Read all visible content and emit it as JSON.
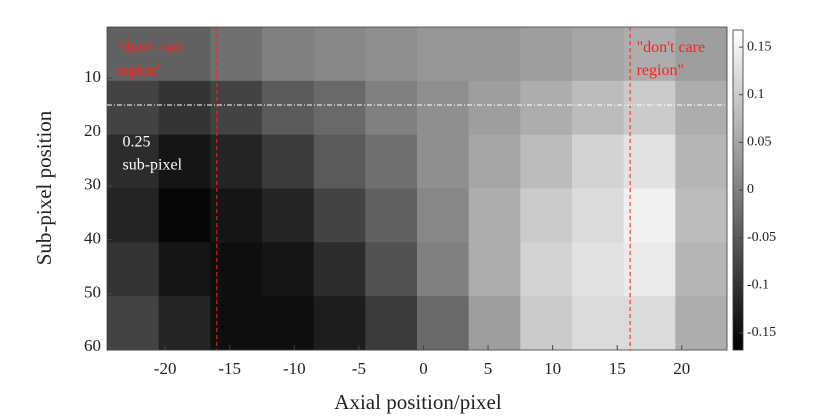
{
  "chart_data": {
    "type": "heatmap",
    "xlabel": "Axial position/pixel",
    "ylabel": "Sub-pixel position",
    "x": [
      -22.5,
      -18.5,
      -14.5,
      -10.5,
      -6.5,
      -2.5,
      1.5,
      5.5,
      9.5,
      13.5,
      17.5,
      21.5
    ],
    "y": [
      5.5,
      15.5,
      25.5,
      35.5,
      45.5,
      55.5
    ],
    "values": [
      [
        -0.04,
        -0.04,
        -0.02,
        0.0,
        0.01,
        0.02,
        0.03,
        0.03,
        0.04,
        0.05,
        0.06,
        0.04
      ],
      [
        -0.08,
        -0.1,
        -0.08,
        -0.05,
        -0.03,
        0.0,
        0.02,
        0.04,
        0.06,
        0.08,
        0.1,
        0.06
      ],
      [
        -0.11,
        -0.14,
        -0.12,
        -0.09,
        -0.05,
        -0.02,
        0.02,
        0.05,
        0.08,
        0.11,
        0.13,
        0.07
      ],
      [
        -0.12,
        -0.16,
        -0.14,
        -0.12,
        -0.08,
        -0.04,
        0.01,
        0.06,
        0.1,
        0.12,
        0.15,
        0.08
      ],
      [
        -0.1,
        -0.14,
        -0.15,
        -0.14,
        -0.11,
        -0.06,
        0.0,
        0.06,
        0.11,
        0.13,
        0.14,
        0.07
      ],
      [
        -0.08,
        -0.12,
        -0.15,
        -0.15,
        -0.13,
        -0.09,
        -0.03,
        0.04,
        0.1,
        0.12,
        0.12,
        0.06
      ]
    ],
    "xlim": [
      -24.5,
      23.5
    ],
    "ylim": [
      0.5,
      60.5
    ],
    "xticks": [
      -20,
      -15,
      -10,
      -5,
      0,
      5,
      10,
      15,
      20
    ],
    "yticks": [
      10,
      20,
      30,
      40,
      50,
      60
    ],
    "clim": [
      -0.168,
      0.168
    ],
    "cticks": [
      0.15,
      0.1,
      0.05,
      0,
      -0.05,
      -0.1,
      -0.15
    ],
    "vlines": [
      -16,
      16
    ],
    "vline_color": "#ff2020",
    "hline": 15,
    "hline_color": "#ffffff",
    "annotations": [
      {
        "lines": [
          "\"don't care",
          "region\""
        ],
        "x": -23.8,
        "y": 3,
        "color": "#ff2020"
      },
      {
        "lines": [
          "\"don't care",
          "region\""
        ],
        "x": 16.5,
        "y": 3,
        "color": "#ff2020"
      },
      {
        "lines": [
          "0.25",
          "sub-pixel"
        ],
        "x": -23.3,
        "y": 20.5,
        "color": "#ffffff"
      }
    ]
  }
}
